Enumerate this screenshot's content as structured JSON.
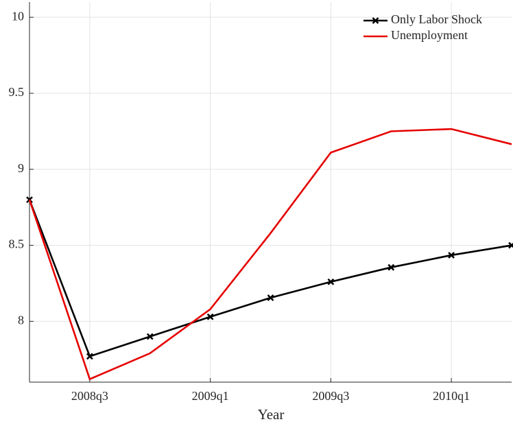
{
  "chart_data": {
    "type": "line",
    "xlabel": "Year",
    "categories": [
      null,
      "2008q3",
      null,
      "2009q1",
      null,
      "2009q3",
      null,
      "2010q1",
      null
    ],
    "series": [
      {
        "name": "Only Labor Shock",
        "color": "#000000",
        "marker": "x",
        "values": [
          8.8,
          7.77,
          7.9,
          8.03,
          8.155,
          8.26,
          8.355,
          8.435,
          8.5
        ]
      },
      {
        "name": "Unemployment",
        "color": "#e60000",
        "values": [
          8.8,
          7.62,
          7.79,
          8.08,
          8.58,
          9.11,
          9.25,
          9.265,
          9.165
        ]
      }
    ],
    "ylim": [
      7.6,
      10.1
    ],
    "yticks": [
      8,
      8.5,
      9,
      9.5,
      10
    ],
    "grid": true,
    "legend": "upper right"
  }
}
